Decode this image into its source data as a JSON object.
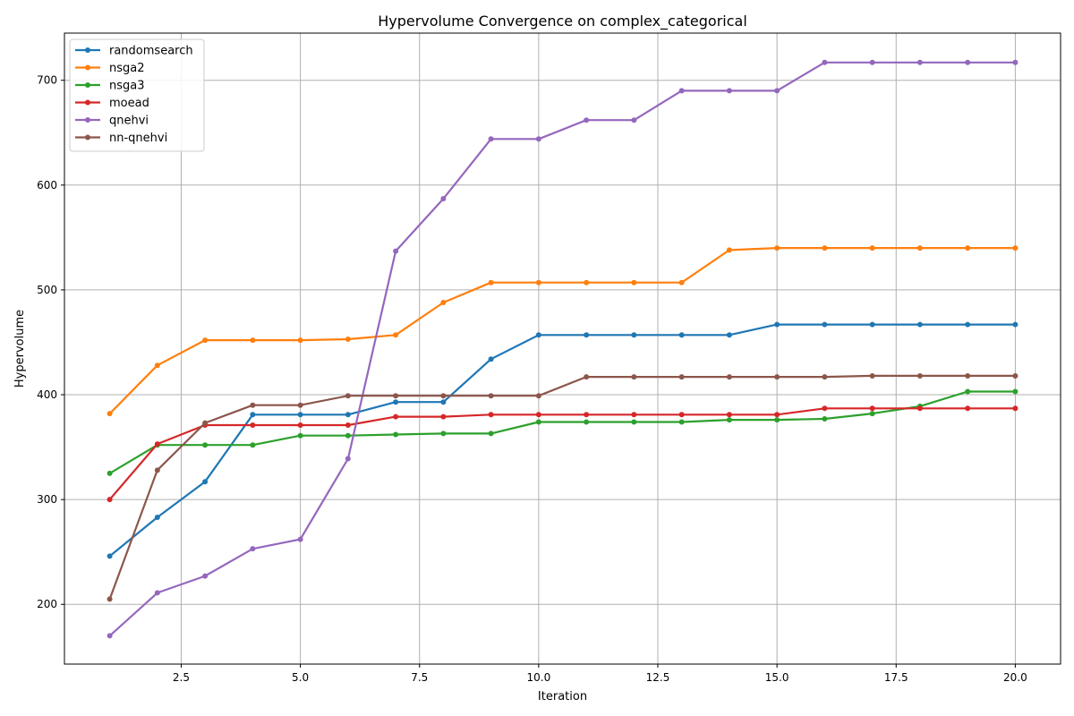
{
  "chart_data": {
    "type": "line",
    "title": "Hypervolume Convergence on complex_categorical",
    "xlabel": "Iteration",
    "ylabel": "Hypervolume",
    "xlim": [
      0.05,
      20.95
    ],
    "ylim": [
      143,
      745
    ],
    "x_ticks": [
      2.5,
      5.0,
      7.5,
      10.0,
      12.5,
      15.0,
      17.5,
      20.0
    ],
    "x_tick_labels": [
      "2.5",
      "5.0",
      "7.5",
      "10.0",
      "12.5",
      "15.0",
      "17.5",
      "20.0"
    ],
    "y_ticks": [
      200,
      300,
      400,
      500,
      600,
      700
    ],
    "y_tick_labels": [
      "200",
      "300",
      "400",
      "500",
      "600",
      "700"
    ],
    "grid": true,
    "legend_position": "upper-left",
    "x": [
      1,
      2,
      3,
      4,
      5,
      6,
      7,
      8,
      9,
      10,
      11,
      12,
      13,
      14,
      15,
      16,
      17,
      18,
      19,
      20
    ],
    "series": [
      {
        "name": "randomsearch",
        "color": "#1f77b4",
        "values": [
          246,
          283,
          317,
          381,
          381,
          381,
          393,
          393,
          434,
          457,
          457,
          457,
          457,
          457,
          467,
          467,
          467,
          467,
          467,
          467
        ]
      },
      {
        "name": "nsga2",
        "color": "#ff7f0e",
        "values": [
          382,
          428,
          452,
          452,
          452,
          453,
          457,
          488,
          507,
          507,
          507,
          507,
          507,
          538,
          540,
          540,
          540,
          540,
          540,
          540
        ]
      },
      {
        "name": "nsga3",
        "color": "#2ca02c",
        "values": [
          325,
          352,
          352,
          352,
          361,
          361,
          362,
          363,
          363,
          374,
          374,
          374,
          374,
          376,
          376,
          377,
          382,
          389,
          403,
          403
        ]
      },
      {
        "name": "moead",
        "color": "#d62728",
        "values": [
          300,
          353,
          371,
          371,
          371,
          371,
          379,
          379,
          381,
          381,
          381,
          381,
          381,
          381,
          381,
          387,
          387,
          387,
          387,
          387
        ]
      },
      {
        "name": "qnehvi",
        "color": "#9467bd",
        "values": [
          170,
          211,
          227,
          253,
          262,
          339,
          537,
          587,
          644,
          644,
          662,
          662,
          690,
          690,
          690,
          717,
          717,
          717,
          717,
          717
        ]
      },
      {
        "name": "nn-qnehvi",
        "color": "#8c564b",
        "values": [
          205,
          328,
          373,
          390,
          390,
          399,
          399,
          399,
          399,
          399,
          417,
          417,
          417,
          417,
          417,
          417,
          418,
          418,
          418,
          418
        ]
      }
    ]
  }
}
